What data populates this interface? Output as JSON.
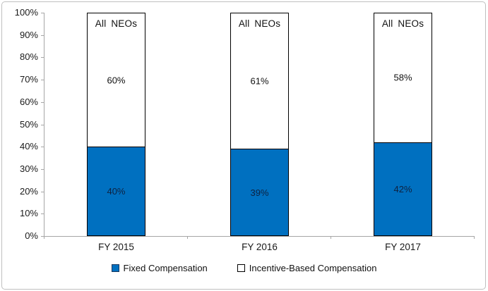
{
  "chart_data": {
    "type": "bar",
    "subtype": "stacked",
    "title": "",
    "categories": [
      "FY 2015",
      "FY 2016",
      "FY 2017"
    ],
    "bar_annotation": "All NEOs",
    "series": [
      {
        "name": "Fixed Compensation",
        "values": [
          40,
          39,
          42
        ],
        "labels": [
          "40%",
          "39%",
          "42%"
        ],
        "fill": "#0070C0",
        "label_color": "#0E2240"
      },
      {
        "name": "Incentive-Based Compensation",
        "values": [
          60,
          61,
          58
        ],
        "labels": [
          "60%",
          "61%",
          "58%"
        ],
        "fill": "#FFFFFF",
        "label_color": "#111111"
      }
    ],
    "ylim": [
      0,
      100
    ],
    "ytick_step": 10,
    "yticks": [
      "0%",
      "10%",
      "20%",
      "30%",
      "40%",
      "50%",
      "60%",
      "70%",
      "80%",
      "90%",
      "100%"
    ],
    "grid": false,
    "legend_position": "bottom",
    "colors": {
      "axis": "#A6A6A6",
      "bar_border": "#000000",
      "frame_border": "#BFBFBF",
      "background": "#FFFFFF"
    }
  },
  "legend": {
    "items": [
      {
        "label": "Fixed Compensation",
        "swatch_fill": "#0070C0",
        "swatch_border": "#17375E"
      },
      {
        "label": "Incentive-Based Compensation",
        "swatch_fill": "#FFFFFF",
        "swatch_border": "#000000"
      }
    ]
  }
}
